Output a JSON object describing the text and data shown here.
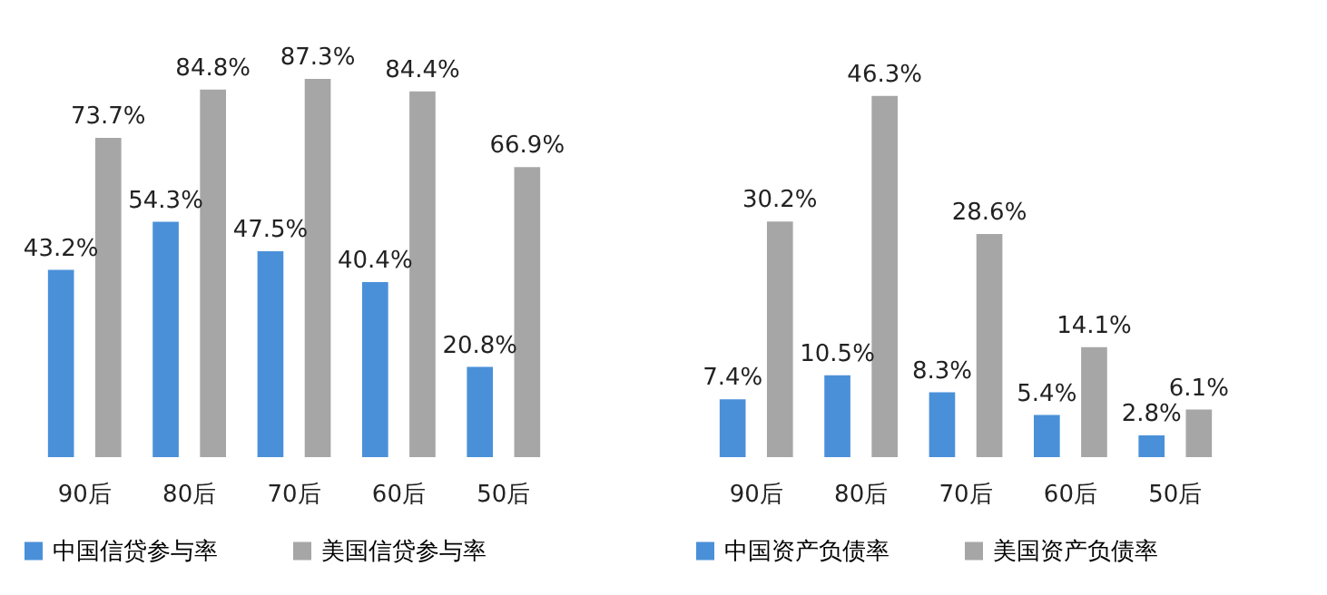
{
  "chart_data": [
    {
      "type": "bar",
      "categories": [
        "90后",
        "80后",
        "70后",
        "60后",
        "50后"
      ],
      "legend": "bottom",
      "series": [
        {
          "name": "中国信贷参与率",
          "color": "#4a90d9",
          "values": [
            43.2,
            54.3,
            47.5,
            40.4,
            20.8
          ],
          "value_labels": [
            "43.2%",
            "54.3%",
            "47.5%",
            "40.4%",
            "20.8%"
          ]
        },
        {
          "name": "美国信贷参与率",
          "color": "#a6a6a6",
          "values": [
            73.7,
            84.8,
            87.3,
            84.4,
            66.9
          ],
          "value_labels": [
            "73.7%",
            "84.8%",
            "87.3%",
            "84.4%",
            "66.9%"
          ]
        }
      ]
    },
    {
      "type": "bar",
      "categories": [
        "90后",
        "80后",
        "70后",
        "60后",
        "50后"
      ],
      "legend": "bottom",
      "series": [
        {
          "name": "中国资产负债率",
          "color": "#4a90d9",
          "values": [
            7.4,
            10.5,
            8.3,
            5.4,
            2.8
          ],
          "value_labels": [
            "7.4%",
            "10.5%",
            "8.3%",
            "5.4%",
            "2.8%"
          ]
        },
        {
          "name": "美国资产负债率",
          "color": "#a6a6a6",
          "values": [
            30.2,
            46.3,
            28.6,
            14.1,
            6.1
          ],
          "value_labels": [
            "30.2%",
            "46.3%",
            "28.6%",
            "14.1%",
            "6.1%"
          ]
        }
      ]
    }
  ]
}
